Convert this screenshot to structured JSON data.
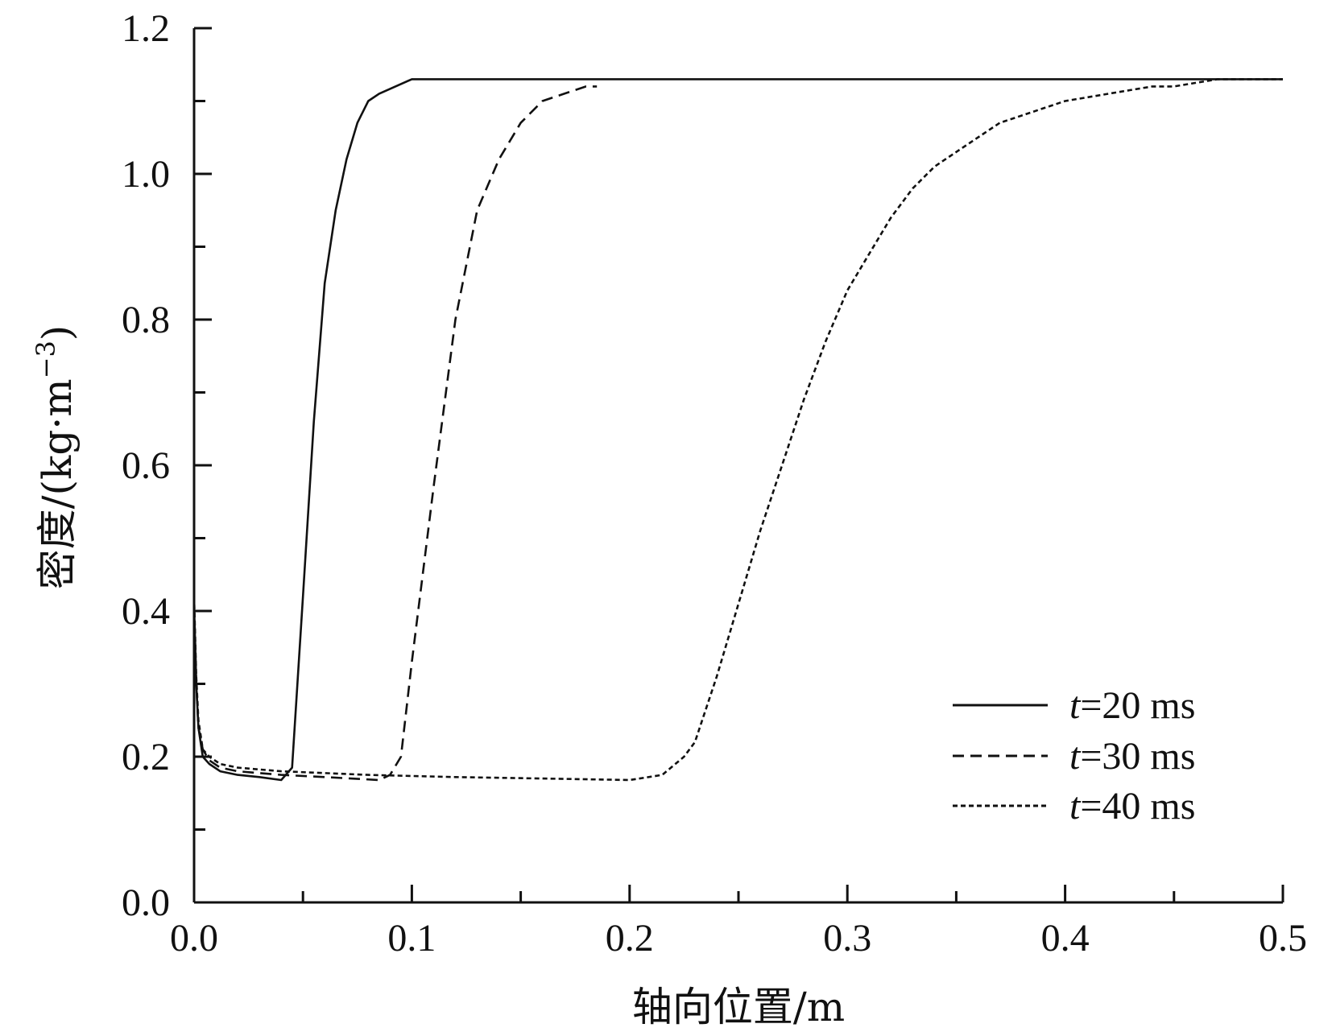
{
  "chart_data": {
    "type": "line",
    "title": "",
    "xlabel": "轴向位置/m",
    "ylabel_main": "密度/(kg·m",
    "ylabel_exp": "−3",
    "ylabel_close": ")",
    "xlim": [
      0.0,
      0.5
    ],
    "ylim": [
      0.0,
      1.2
    ],
    "x_ticks": [
      "0.0",
      "0.1",
      "0.2",
      "0.3",
      "0.4",
      "0.5"
    ],
    "x_tick_values": [
      0.0,
      0.1,
      0.2,
      0.3,
      0.4,
      0.5
    ],
    "x_minor_step": 0.05,
    "y_ticks": [
      "0.0",
      "0.2",
      "0.4",
      "0.6",
      "0.8",
      "1.0",
      "1.2"
    ],
    "y_tick_values": [
      0.0,
      0.2,
      0.4,
      0.6,
      0.8,
      1.0,
      1.2
    ],
    "y_minor_step": 0.1,
    "grid": false,
    "legend_position": "lower-right",
    "series": [
      {
        "name_var": "t",
        "name_rest": "=20 ms",
        "style": "solid",
        "x": [
          0.0,
          0.001,
          0.002,
          0.004,
          0.007,
          0.012,
          0.02,
          0.03,
          0.04,
          0.045,
          0.05,
          0.055,
          0.06,
          0.065,
          0.07,
          0.075,
          0.08,
          0.085,
          0.1,
          0.5
        ],
        "y": [
          0.41,
          0.3,
          0.24,
          0.2,
          0.19,
          0.18,
          0.175,
          0.172,
          0.168,
          0.185,
          0.42,
          0.66,
          0.85,
          0.95,
          1.02,
          1.07,
          1.1,
          1.11,
          1.13,
          1.13
        ]
      },
      {
        "name_var": "t",
        "name_rest": "=30 ms",
        "style": "dashed",
        "x": [
          0.0,
          0.001,
          0.002,
          0.004,
          0.007,
          0.012,
          0.02,
          0.04,
          0.06,
          0.085,
          0.09,
          0.095,
          0.1,
          0.11,
          0.12,
          0.13,
          0.14,
          0.15,
          0.16,
          0.17,
          0.18,
          0.185
        ],
        "y": [
          0.41,
          0.3,
          0.24,
          0.21,
          0.195,
          0.185,
          0.18,
          0.175,
          0.172,
          0.168,
          0.175,
          0.2,
          0.33,
          0.57,
          0.8,
          0.95,
          1.02,
          1.07,
          1.1,
          1.11,
          1.12,
          1.12
        ]
      },
      {
        "name_var": "t",
        "name_rest": "=40 ms",
        "style": "dotted",
        "x": [
          0.0,
          0.001,
          0.002,
          0.004,
          0.007,
          0.012,
          0.02,
          0.04,
          0.08,
          0.12,
          0.16,
          0.2,
          0.215,
          0.225,
          0.23,
          0.24,
          0.25,
          0.26,
          0.27,
          0.28,
          0.29,
          0.3,
          0.31,
          0.32,
          0.33,
          0.34,
          0.35,
          0.36,
          0.37,
          0.38,
          0.39,
          0.4,
          0.41,
          0.42,
          0.43,
          0.44,
          0.45,
          0.46,
          0.47,
          0.5
        ],
        "y": [
          0.42,
          0.31,
          0.25,
          0.21,
          0.2,
          0.19,
          0.185,
          0.18,
          0.175,
          0.172,
          0.17,
          0.168,
          0.175,
          0.2,
          0.22,
          0.31,
          0.41,
          0.51,
          0.6,
          0.69,
          0.77,
          0.84,
          0.89,
          0.94,
          0.98,
          1.01,
          1.03,
          1.05,
          1.07,
          1.08,
          1.09,
          1.1,
          1.105,
          1.11,
          1.115,
          1.12,
          1.12,
          1.125,
          1.13,
          1.13
        ]
      }
    ]
  }
}
